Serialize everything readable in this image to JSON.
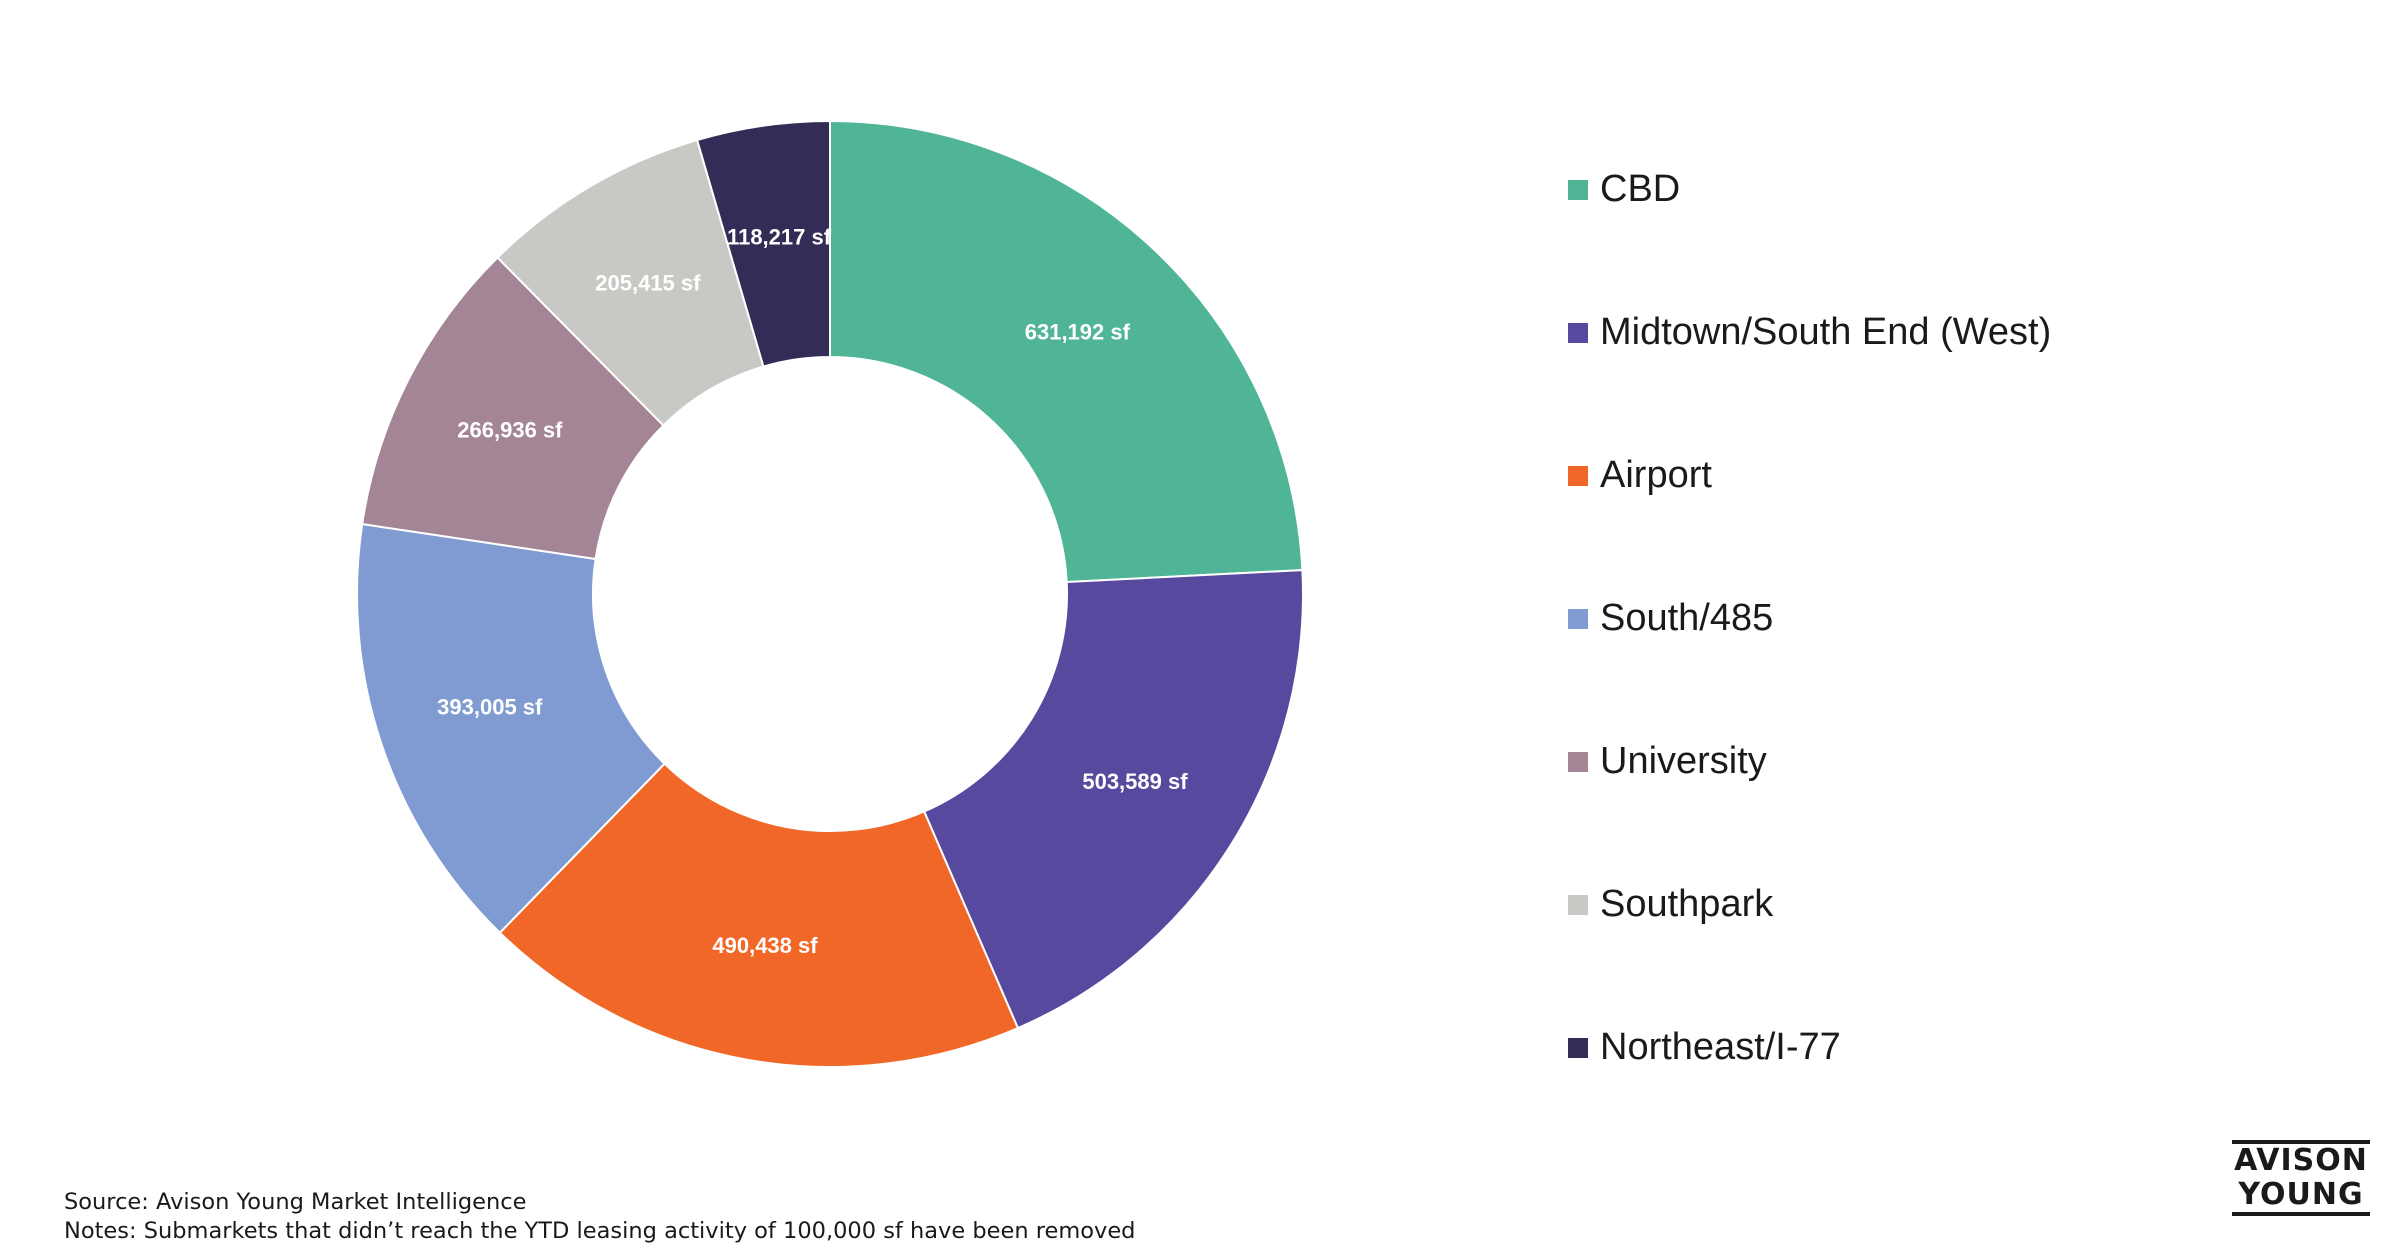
{
  "chart_data": {
    "type": "pie",
    "style": "donut",
    "title": "",
    "legend_position": "right",
    "unit": "sf",
    "categories": [
      "CBD",
      "Midtown/South End (West)",
      "Airport",
      "South/485",
      "University",
      "Southpark",
      "Northeast/I-77"
    ],
    "values": [
      631192,
      503589,
      490438,
      393005,
      266936,
      205415,
      118217
    ],
    "data_labels": [
      "631,192 sf",
      "503,589 sf",
      "490,438 sf",
      "393,005 sf",
      "266,936 sf",
      "205,415 sf",
      "118,217 sf"
    ],
    "colors": [
      "#4fb596",
      "#574a9e",
      "#f06727",
      "#7f9bd1",
      "#a38596",
      "#c8c8c4",
      "#332c56"
    ]
  },
  "footer": {
    "source": "Source: Avison Young Market Intelligence",
    "notes": "Notes: Submarkets that didn’t reach the YTD leasing activity of 100,000 sf have been removed"
  },
  "logo": {
    "line1": "AVISON",
    "line2": "YOUNG"
  }
}
